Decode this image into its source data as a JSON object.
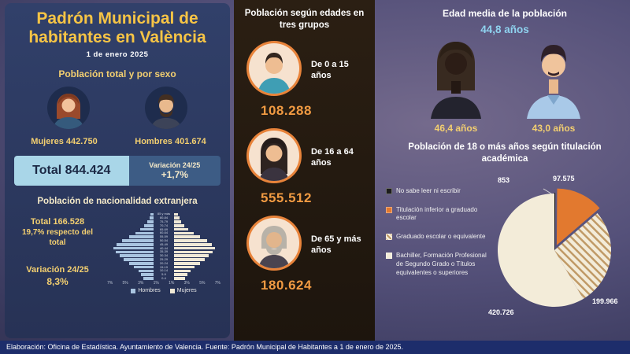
{
  "left_panel": {
    "title": "Padrón Municipal de habitantes en València",
    "date": "1 de enero  2025",
    "sex": {
      "heading": "Población total y por sexo",
      "female": "Mujeres 442.750",
      "male": "Hombres 401.674"
    },
    "total_box": {
      "total": "Total 844.424",
      "variation_label": "Variación 24/25",
      "variation_value": "+1,7%"
    },
    "foreign": {
      "heading": "Población de nacionalidad extranjera",
      "total": "Total 166.528",
      "percent": "19,7% respecto del total",
      "variation_label": "Variación 24/25",
      "variation_value": "8,3%"
    }
  },
  "middle_panel": {
    "heading": "Población según edades en tres grupos",
    "groups": [
      {
        "label": "De 0 a 15 años",
        "value": "108.288"
      },
      {
        "label": "De 16 a 64 años",
        "value": "555.512"
      },
      {
        "label": "De 65 y más años",
        "value": "180.624"
      }
    ]
  },
  "right_panel": {
    "age_heading": "Edad media de la población",
    "age_overall": "44,8 años",
    "age_female": "46,4 años",
    "age_male": "43,0 años",
    "edu_heading": "Población de 18 o más años según titulación académica"
  },
  "footer": {
    "text": "Elaboración: Oficina de Estadística. Ayuntamiento de Valencia. Fuente: Padrón Municipal de Habitantes a 1 de enero de 2025."
  },
  "colors": {
    "accent_gold": "#f6c445",
    "accent_orange": "#f09a42",
    "accent_lightblue": "#8fd3ef",
    "pie_orange": "#e2792f",
    "pie_cream": "#f3ecd9",
    "pie_black": "#1c1c1c"
  },
  "chart_data": [
    {
      "type": "pie",
      "title": "Población de 18 o más años según titulación académica",
      "labels": [
        "No sabe leer ni escribir",
        "Titulación inferior a graduado escolar",
        "Graduado escolar o equivalente",
        "Bachiller, Formación Profesional de Segundo Grado o Títulos equivalentes o superiores"
      ],
      "values": [
        853,
        97575,
        199966,
        420726
      ],
      "display_values": [
        "853",
        "97.575",
        "199.966",
        "420.726"
      ],
      "colors": [
        "#1c1c1c",
        "#e2792f",
        "hatch",
        "#f3ecd9"
      ],
      "legend_position": "left",
      "start_angle_deg": -90,
      "direction": "clockwise",
      "exploded_slice_index": 1
    },
    {
      "type": "bar",
      "subtype": "population-pyramid",
      "title": "Población de nacionalidad extranjera",
      "unit": "% del total",
      "age_groups": [
        "85 y más",
        "80-84",
        "75-79",
        "70-74",
        "65-69",
        "60-64",
        "55-59",
        "50-54",
        "45-49",
        "40-44",
        "35-39",
        "30-34",
        "25-29",
        "20-24",
        "15-19",
        "10-14",
        "5-9",
        "0-4"
      ],
      "series": [
        {
          "name": "Hombres",
          "values": [
            0.3,
            0.4,
            0.6,
            0.9,
            1.3,
            1.8,
            2.4,
            3.1,
            3.6,
            3.9,
            3.7,
            3.3,
            2.9,
            2.4,
            1.9,
            1.5,
            1.2,
            1.0
          ]
        },
        {
          "name": "Mujeres",
          "values": [
            0.4,
            0.5,
            0.7,
            1.0,
            1.4,
            1.9,
            2.5,
            3.2,
            3.7,
            4.0,
            3.8,
            3.4,
            3.0,
            2.5,
            2.0,
            1.6,
            1.3,
            1.1
          ]
        }
      ],
      "x_axis_labels": [
        "7%",
        "5%",
        "3%",
        "1%",
        "1%",
        "3%",
        "5%",
        "7%"
      ]
    }
  ]
}
